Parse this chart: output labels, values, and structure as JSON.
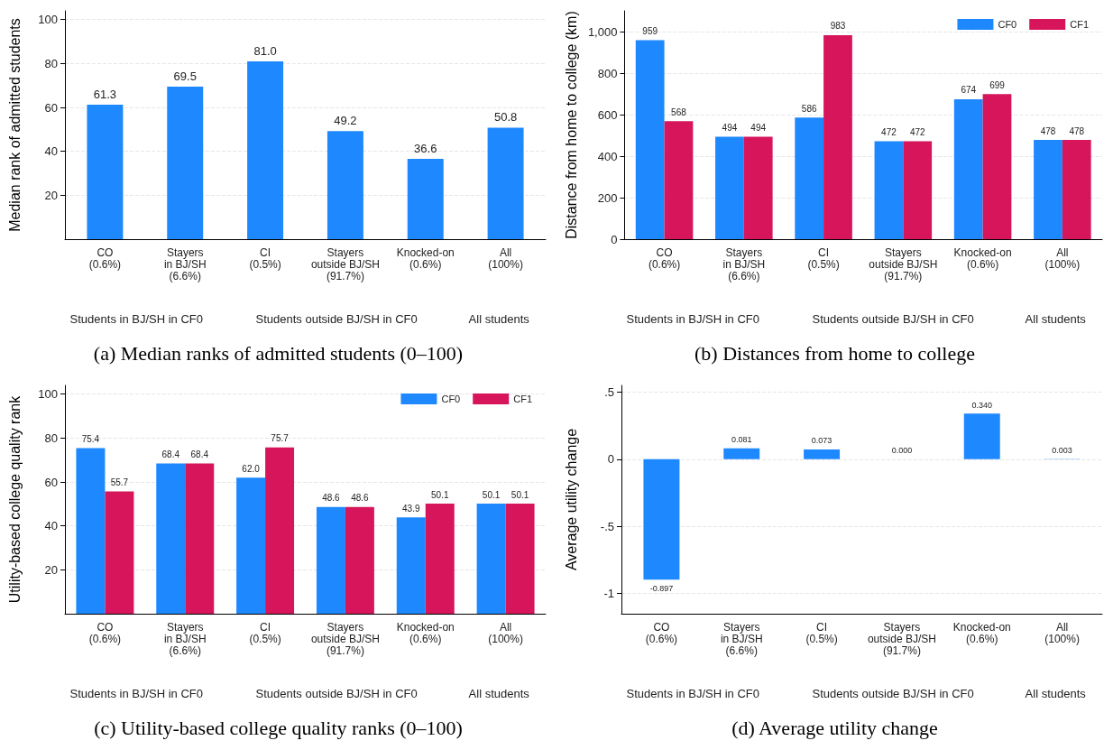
{
  "chart_data": [
    {
      "type": "bar",
      "title": "(a) Median ranks of admitted students (0–100)",
      "ylabel": "Median rank of admitted students",
      "categories": [
        "CO\n(0.6%)",
        "Stayers\nin BJ/SH\n(6.6%)",
        "CI\n(0.5%)",
        "Stayers\noutside BJ/SH\n(91.7%)",
        "Knocked-on\n(0.6%)",
        "All\n(100%)"
      ],
      "series": [
        {
          "color": "#1e88ff",
          "values": [
            61.3,
            69.5,
            81.0,
            49.2,
            36.6,
            50.8
          ],
          "value_labels": [
            "61.3",
            "69.5",
            "81.0",
            "49.2",
            "36.6",
            "50.8"
          ]
        }
      ],
      "ylim": [
        0,
        104
      ],
      "yticks": [
        20,
        40,
        60,
        80,
        100
      ],
      "grid": "y",
      "annotations": [
        "Students in BJ/SH in CF0",
        "Students outside BJ/SH in CF0",
        "All students"
      ]
    },
    {
      "type": "bar",
      "title": "(b) Distances from home to college",
      "ylabel": "Distance from home to college (km)",
      "categories": [
        "CO\n(0.6%)",
        "Stayers\nin BJ/SH\n(6.6%)",
        "CI\n(0.5%)",
        "Stayers\noutside BJ/SH\n(91.7%)",
        "Knocked-on\n(0.6%)",
        "All\n(100%)"
      ],
      "series": [
        {
          "name": "CF0",
          "color": "#1e88ff",
          "values": [
            959,
            494,
            586,
            472,
            674,
            478
          ]
        },
        {
          "name": "CF1",
          "color": "#d6155a",
          "values": [
            568,
            494,
            983,
            472,
            699,
            478
          ]
        }
      ],
      "data_labels": true,
      "legend": "top right",
      "ylim": [
        0,
        1100
      ],
      "yticks": [
        0,
        200,
        400,
        600,
        800,
        {
          "value": 1000,
          "label": "1,000"
        }
      ],
      "grid": "y",
      "annotations": [
        "Students in BJ/SH in CF0",
        "Students outside BJ/SH in CF0",
        "All students"
      ]
    },
    {
      "type": "bar",
      "title": "(c) Utility-based college quality ranks (0–100)",
      "ylabel": "Utility-based college quality rank",
      "categories": [
        "CO\n(0.6%)",
        "Stayers\nin BJ/SH\n(6.6%)",
        "CI\n(0.5%)",
        "Stayers\noutside BJ/SH\n(91.7%)",
        "Knocked-on\n(0.6%)",
        "All\n(100%)"
      ],
      "series": [
        {
          "name": "CF0",
          "color": "#1e88ff",
          "values": [
            75.4,
            68.4,
            62.0,
            48.6,
            43.9,
            50.1
          ],
          "value_labels": [
            "75.4",
            "68.4",
            "62.0",
            "48.6",
            "43.9",
            "50.1"
          ]
        },
        {
          "name": "CF1",
          "color": "#d6155a",
          "values": [
            55.7,
            68.4,
            75.7,
            48.6,
            50.1,
            50.1
          ],
          "value_labels": [
            "55.7",
            "68.4",
            "75.7",
            "48.6",
            "50.1",
            "50.1"
          ]
        }
      ],
      "legend": "top right",
      "ylim": [
        0,
        104
      ],
      "yticks": [
        20,
        40,
        60,
        80,
        100
      ],
      "grid": "y",
      "annotations": [
        "Students in BJ/SH in CF0",
        "Students outside BJ/SH in CF0",
        "All students"
      ]
    },
    {
      "type": "bar",
      "title": "(d) Average utility change",
      "ylabel": "Average utility change",
      "categories": [
        "CO\n(0.6%)",
        "Stayers\nin BJ/SH\n(6.6%)",
        "CI\n(0.5%)",
        "Stayers\noutside BJ/SH\n(91.7%)",
        "Knocked-on\n(0.6%)",
        "All\n(100%)"
      ],
      "series": [
        {
          "color": "#1e88ff",
          "values": [
            -0.897,
            0.081,
            0.073,
            0.0,
            0.34,
            0.003
          ],
          "value_labels": [
            "-0.897",
            "0.081",
            "0.073",
            "0.000",
            "0.340",
            "0.003"
          ]
        }
      ],
      "ylim": [
        -1.15,
        0.55
      ],
      "yticks": [
        {
          "value": -1,
          "label": "-1"
        },
        {
          "value": -0.5,
          "label": "-.5"
        },
        0,
        {
          "value": 0.5,
          "label": ".5"
        }
      ],
      "grid": "y",
      "annotations": [
        "Students in BJ/SH in CF0",
        "Students outside BJ/SH in CF0",
        "All students"
      ]
    }
  ]
}
